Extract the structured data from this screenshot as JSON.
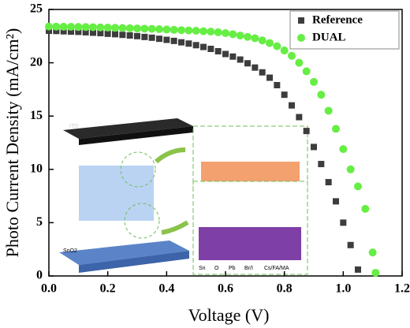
{
  "chart_data": {
    "type": "scatter",
    "xlabel": "Voltage (V)",
    "ylabel": "Photo Current Density (mA/cm²)",
    "xlim": [
      0,
      1.2
    ],
    "xticks": [
      {
        "value": 0,
        "label": "0.0"
      },
      0.2,
      0.4,
      0.6,
      0.8,
      {
        "value": 1,
        "label": "1.0"
      },
      1.2
    ],
    "ylim": [
      0,
      25
    ],
    "yticks": [
      0,
      5,
      10,
      15,
      20,
      25
    ],
    "legend": "upper right",
    "inset_labels": [
      "ITO",
      "SnO2",
      "Sn",
      "O",
      "Pb",
      "Br/I",
      "Cs/FA/MA"
    ],
    "series": [
      {
        "name": "Reference",
        "color": "#3d3d3d",
        "marker": "square",
        "x": [
          0,
          0.025,
          0.05,
          0.075,
          0.1,
          0.125,
          0.15,
          0.175,
          0.2,
          0.225,
          0.25,
          0.275,
          0.3,
          0.325,
          0.35,
          0.375,
          0.4,
          0.425,
          0.45,
          0.475,
          0.5,
          0.525,
          0.55,
          0.575,
          0.6,
          0.625,
          0.65,
          0.675,
          0.7,
          0.725,
          0.75,
          0.775,
          0.8,
          0.825,
          0.85,
          0.875,
          0.9,
          0.925,
          0.95,
          0.975,
          1,
          1.025,
          1.05
        ],
        "values": [
          23.0,
          22.98,
          22.95,
          22.92,
          22.9,
          22.86,
          22.82,
          22.78,
          22.72,
          22.68,
          22.62,
          22.56,
          22.5,
          22.42,
          22.35,
          22.25,
          22.15,
          22.05,
          21.92,
          21.8,
          21.65,
          21.48,
          21.3,
          21.08,
          20.82,
          20.58,
          20.3,
          19.95,
          19.55,
          19.1,
          18.6,
          17.9,
          17.0,
          16.0,
          14.9,
          13.6,
          12.1,
          10.5,
          8.8,
          7.0,
          5.0,
          2.9,
          0.6
        ]
      },
      {
        "name": "DUAL",
        "color": "#66ee44",
        "marker": "circle",
        "x": [
          0,
          0.025,
          0.05,
          0.075,
          0.1,
          0.125,
          0.15,
          0.175,
          0.2,
          0.225,
          0.25,
          0.275,
          0.3,
          0.325,
          0.35,
          0.375,
          0.4,
          0.425,
          0.45,
          0.475,
          0.5,
          0.525,
          0.55,
          0.575,
          0.6,
          0.625,
          0.65,
          0.675,
          0.7,
          0.725,
          0.75,
          0.775,
          0.8,
          0.825,
          0.85,
          0.875,
          0.9,
          0.925,
          0.95,
          0.975,
          1,
          1.025,
          1.05,
          1.075,
          1.1,
          1.11
        ],
        "values": [
          23.4,
          23.39,
          23.38,
          23.37,
          23.36,
          23.35,
          23.34,
          23.32,
          23.3,
          23.28,
          23.26,
          23.24,
          23.22,
          23.2,
          23.18,
          23.15,
          23.12,
          23.09,
          23.06,
          23.03,
          23.0,
          22.96,
          22.92,
          22.86,
          22.78,
          22.68,
          22.55,
          22.43,
          22.3,
          22.1,
          21.85,
          21.55,
          21.15,
          20.65,
          20.0,
          19.2,
          18.2,
          17.0,
          15.5,
          13.8,
          11.9,
          10.0,
          8.4,
          6.3,
          2.2,
          0.3
        ]
      }
    ]
  }
}
